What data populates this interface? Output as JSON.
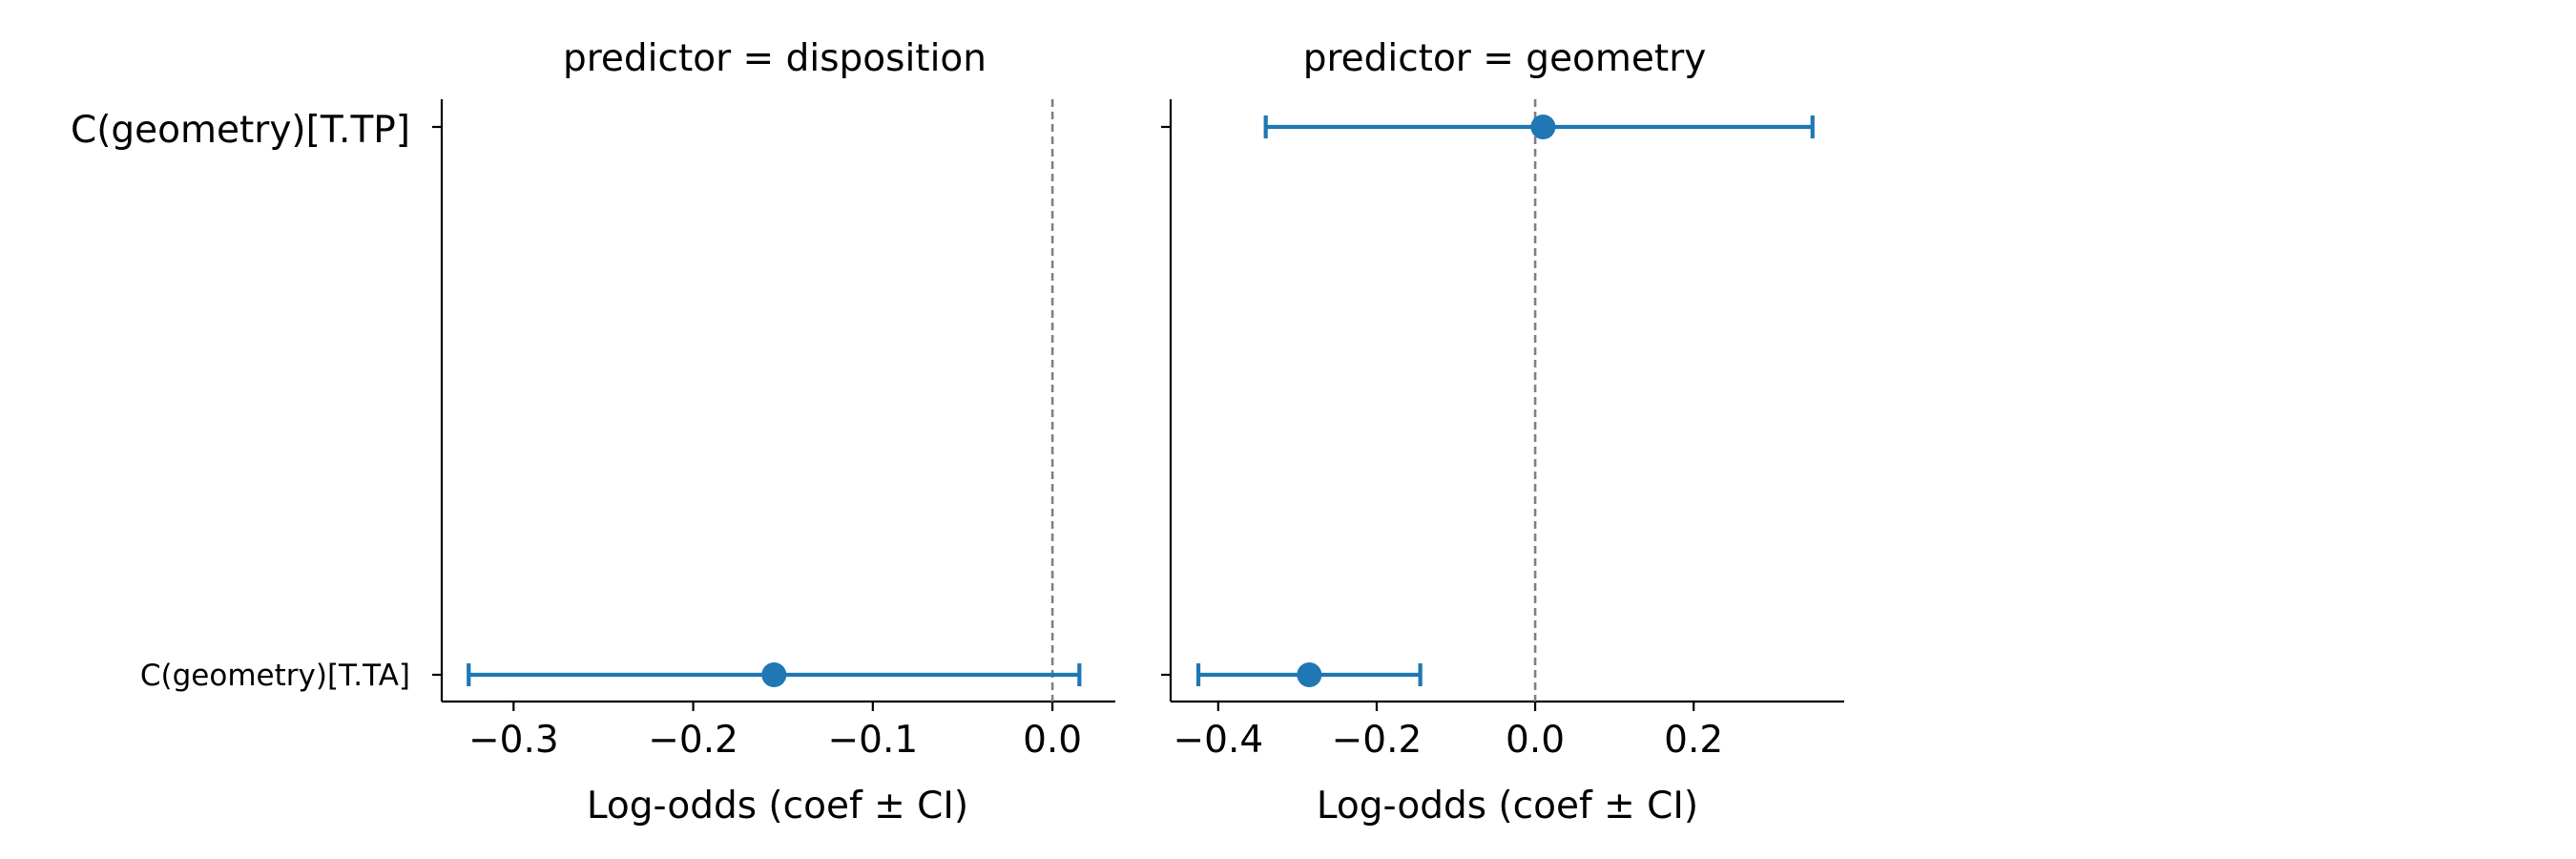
{
  "chart_data": [
    {
      "type": "scatter",
      "title": "predictor = disposition",
      "xlabel": "Log-odds (coef ± CI)",
      "ylabel": "",
      "categories": [
        "C(geometry)[T.TA]"
      ],
      "category_labels": [
        "C(geometry)[T.TA]",
        "C(geometry)[T.TP]"
      ],
      "xlim": [
        -0.34,
        0.035
      ],
      "xticks": [
        -0.3,
        -0.2,
        -0.1,
        0.0
      ],
      "xtick_labels": [
        "−0.3",
        "−0.2",
        "−0.1",
        "0.0"
      ],
      "reference_line": 0.0,
      "series": [
        {
          "points": [
            {
              "category": "C(geometry)[T.TA]",
              "coef": -0.155,
              "ci_low": -0.325,
              "ci_high": 0.015
            }
          ]
        }
      ],
      "grid": false,
      "color": "#1f77b4"
    },
    {
      "type": "scatter",
      "title": "predictor = geometry",
      "xlabel": "Log-odds (coef ± CI)",
      "ylabel": "",
      "categories": [
        "C(geometry)[T.TA]",
        "C(geometry)[T.TP]"
      ],
      "xlim": [
        -0.46,
        0.39
      ],
      "xticks": [
        -0.4,
        -0.2,
        0.0,
        0.2
      ],
      "xtick_labels": [
        "−0.4",
        "−0.2",
        "0.0",
        "0.2"
      ],
      "reference_line": 0.0,
      "series": [
        {
          "points": [
            {
              "category": "C(geometry)[T.TA]",
              "coef": -0.285,
              "ci_low": -0.425,
              "ci_high": -0.145
            },
            {
              "category": "C(geometry)[T.TP]",
              "coef": 0.01,
              "ci_low": -0.34,
              "ci_high": 0.35
            }
          ]
        }
      ],
      "grid": false,
      "color": "#1f77b4"
    }
  ]
}
